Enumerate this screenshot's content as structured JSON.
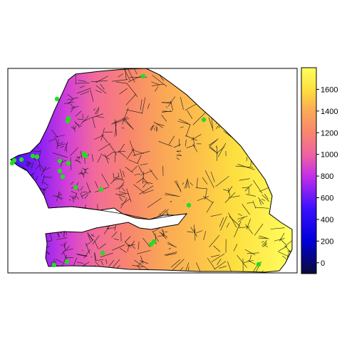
{
  "chart_data": {
    "type": "heatmap",
    "subtype": "voronoi-choropleth-map",
    "title": "",
    "xlabel": "",
    "ylabel": "",
    "legend": {
      "placement": "right",
      "kind": "continuous colorbar",
      "range": [
        -100,
        1800
      ],
      "ticks": [
        0,
        200,
        400,
        600,
        800,
        1000,
        1200,
        1400,
        1600
      ],
      "tick_labels": [
        "0",
        "200",
        "400",
        "600",
        "800",
        "1000",
        "1200",
        "1400",
        "1600"
      ],
      "palette_stops": [
        {
          "value": -100,
          "color": "#0b0a3a"
        },
        {
          "value": 200,
          "color": "#0000d8"
        },
        {
          "value": 500,
          "color": "#3a10ff"
        },
        {
          "value": 800,
          "color": "#c42fe8"
        },
        {
          "value": 1000,
          "color": "#f062a0"
        },
        {
          "value": 1200,
          "color": "#f8866e"
        },
        {
          "value": 1400,
          "color": "#faa955"
        },
        {
          "value": 1600,
          "color": "#fde040"
        },
        {
          "value": 1800,
          "color": "#ffff5e"
        }
      ]
    },
    "value_gradient": "low values (~600) in the far west near the coast, increasing toward the east (~1700)",
    "points": {
      "color": "#22dd22",
      "description": "station locations",
      "count": 25
    },
    "grid": false,
    "box": true
  }
}
